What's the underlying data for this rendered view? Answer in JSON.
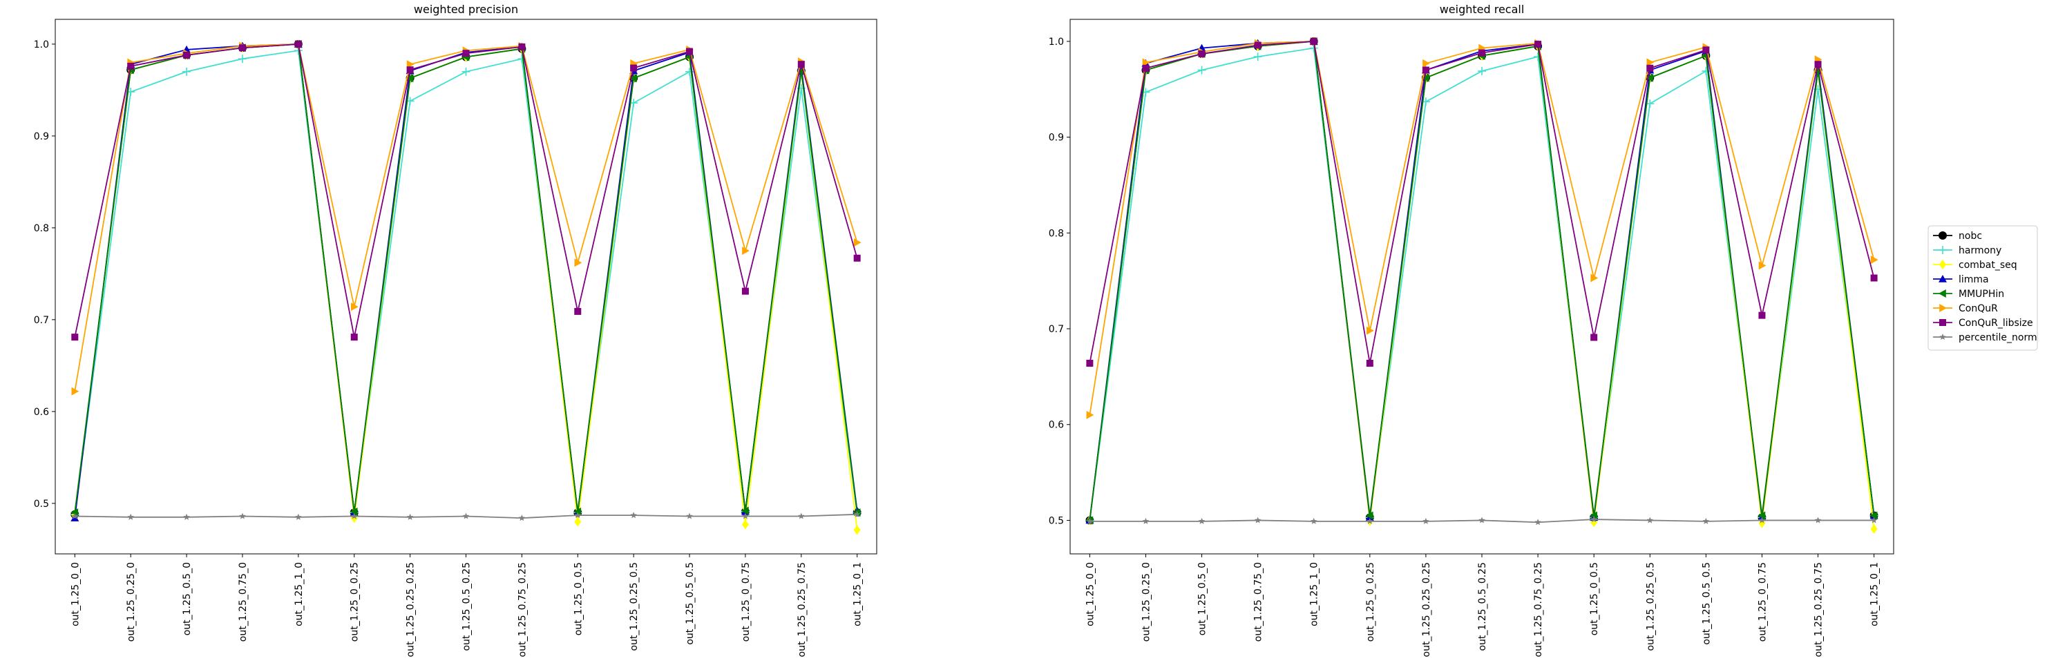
{
  "chart_data": [
    {
      "type": "line",
      "title": "weighted precision",
      "xlabel": "",
      "ylabel": "",
      "ylim": [
        0.445,
        1.027
      ],
      "yticks": [
        0.5,
        0.6,
        0.7,
        0.8,
        0.9,
        1.0
      ],
      "ytick_labels": [
        "0.5",
        "0.6",
        "0.7",
        "0.8",
        "0.9",
        "1.0"
      ],
      "grid": false,
      "categories": [
        "out_1.25_0_0",
        "out_1.25_0.25_0",
        "out_1.25_0.5_0",
        "out_1.25_0.75_0",
        "out_1.25_1_0",
        "out_1.25_0_0.25",
        "out_1.25_0.25_0.25",
        "out_1.25_0.5_0.25",
        "out_1.25_0.75_0.25",
        "out_1.25_0_0.5",
        "out_1.25_0.25_0.5",
        "out_1.25_0.5_0.5",
        "out_1.25_0_0.75",
        "out_1.25_0.25_0.75",
        "out_1.25_0_1"
      ],
      "series": [
        {
          "name": "nobc",
          "values": [
            0.488,
            0.972,
            0.988,
            0.996,
            1.0,
            0.49,
            0.963,
            0.986,
            0.995,
            0.49,
            0.963,
            0.986,
            0.491,
            0.971,
            0.49
          ]
        },
        {
          "name": "harmony",
          "values": [
            0.488,
            0.948,
            0.97,
            0.984,
            0.993,
            0.49,
            0.938,
            0.97,
            0.984,
            0.49,
            0.936,
            0.97,
            0.491,
            0.952,
            0.49
          ]
        },
        {
          "name": "combat_seq",
          "values": [
            0.487,
            0.972,
            0.988,
            0.996,
            1.0,
            0.484,
            0.963,
            0.986,
            0.995,
            0.48,
            0.963,
            0.986,
            0.477,
            0.971,
            0.471
          ]
        },
        {
          "name": "limma",
          "values": [
            0.484,
            0.978,
            0.994,
            0.998,
            1.0,
            0.49,
            0.971,
            0.991,
            0.997,
            0.49,
            0.971,
            0.991,
            0.491,
            0.975,
            0.492
          ]
        },
        {
          "name": "MMUPHin",
          "values": [
            0.49,
            0.972,
            0.988,
            0.996,
            1.0,
            0.491,
            0.963,
            0.986,
            0.995,
            0.491,
            0.963,
            0.986,
            0.492,
            0.971,
            0.49
          ]
        },
        {
          "name": "ConQuR",
          "values": [
            0.622,
            0.98,
            0.99,
            0.998,
            1.0,
            0.714,
            0.978,
            0.993,
            0.998,
            0.762,
            0.979,
            0.994,
            0.775,
            0.981,
            0.784
          ]
        },
        {
          "name": "ConQuR_libsize",
          "values": [
            0.681,
            0.976,
            0.988,
            0.996,
            1.0,
            0.681,
            0.972,
            0.99,
            0.997,
            0.709,
            0.974,
            0.992,
            0.731,
            0.978,
            0.767
          ]
        },
        {
          "name": "percentile_norm",
          "values": [
            0.486,
            0.485,
            0.485,
            0.486,
            0.485,
            0.486,
            0.485,
            0.486,
            0.484,
            0.487,
            0.487,
            0.486,
            0.486,
            0.486,
            0.488
          ]
        }
      ]
    },
    {
      "type": "line",
      "title": "weighted recall",
      "xlabel": "",
      "ylabel": "",
      "ylim": [
        0.465,
        1.023
      ],
      "yticks": [
        0.5,
        0.6,
        0.7,
        0.8,
        0.9,
        1.0
      ],
      "ytick_labels": [
        "0.5",
        "0.6",
        "0.7",
        "0.8",
        "0.9",
        "1.0"
      ],
      "grid": false,
      "categories": [
        "out_1.25_0_0",
        "out_1.25_0.25_0",
        "out_1.25_0.5_0",
        "out_1.25_0.75_0",
        "out_1.25_1_0",
        "out_1.25_0_0.25",
        "out_1.25_0.25_0.25",
        "out_1.25_0.5_0.25",
        "out_1.25_0.75_0.25",
        "out_1.25_0_0.5",
        "out_1.25_0.25_0.5",
        "out_1.25_0.5_0.5",
        "out_1.25_0_0.75",
        "out_1.25_0.25_0.75",
        "out_1.25_0_1"
      ],
      "series": [
        {
          "name": "nobc",
          "values": [
            0.5,
            0.97,
            0.987,
            0.995,
            1.0,
            0.503,
            0.962,
            0.985,
            0.995,
            0.503,
            0.962,
            0.985,
            0.503,
            0.97,
            0.505
          ]
        },
        {
          "name": "harmony",
          "values": [
            0.5,
            0.947,
            0.97,
            0.984,
            0.993,
            0.503,
            0.937,
            0.969,
            0.984,
            0.503,
            0.935,
            0.969,
            0.503,
            0.95,
            0.505
          ]
        },
        {
          "name": "combat_seq",
          "values": [
            0.5,
            0.97,
            0.987,
            0.995,
            1.0,
            0.499,
            0.962,
            0.985,
            0.995,
            0.498,
            0.962,
            0.985,
            0.497,
            0.97,
            0.491
          ]
        },
        {
          "name": "limma",
          "values": [
            0.5,
            0.977,
            0.993,
            0.998,
            1.0,
            0.503,
            0.97,
            0.99,
            0.997,
            0.503,
            0.97,
            0.99,
            0.503,
            0.974,
            0.505
          ]
        },
        {
          "name": "MMUPHin",
          "values": [
            0.5,
            0.97,
            0.987,
            0.995,
            1.0,
            0.505,
            0.962,
            0.985,
            0.995,
            0.505,
            0.962,
            0.985,
            0.505,
            0.97,
            0.505
          ]
        },
        {
          "name": "ConQuR",
          "values": [
            0.61,
            0.978,
            0.989,
            0.998,
            1.0,
            0.698,
            0.977,
            0.993,
            0.998,
            0.753,
            0.978,
            0.994,
            0.766,
            0.981,
            0.772
          ]
        },
        {
          "name": "ConQuR_libsize",
          "values": [
            0.664,
            0.972,
            0.987,
            0.996,
            1.0,
            0.664,
            0.97,
            0.988,
            0.997,
            0.691,
            0.972,
            0.991,
            0.714,
            0.976,
            0.753
          ]
        },
        {
          "name": "percentile_norm",
          "values": [
            0.499,
            0.499,
            0.499,
            0.5,
            0.499,
            0.499,
            0.499,
            0.5,
            0.498,
            0.501,
            0.5,
            0.499,
            0.5,
            0.5,
            0.5
          ]
        }
      ]
    }
  ],
  "legend": {
    "placement": "right",
    "entries": [
      {
        "name": "nobc",
        "color": "#000000",
        "marker": "circle"
      },
      {
        "name": "harmony",
        "color": "#40e0d0",
        "marker": "plus"
      },
      {
        "name": "combat_seq",
        "color": "#ffff00",
        "marker": "diamond"
      },
      {
        "name": "limma",
        "color": "#0000cd",
        "marker": "triangle-up"
      },
      {
        "name": "MMUPHin",
        "color": "#008000",
        "marker": "triangle-left"
      },
      {
        "name": "ConQuR",
        "color": "#ffa500",
        "marker": "triangle-right"
      },
      {
        "name": "ConQuR_libsize",
        "color": "#800080",
        "marker": "square"
      },
      {
        "name": "percentile_norm",
        "color": "#808080",
        "marker": "star"
      }
    ]
  }
}
